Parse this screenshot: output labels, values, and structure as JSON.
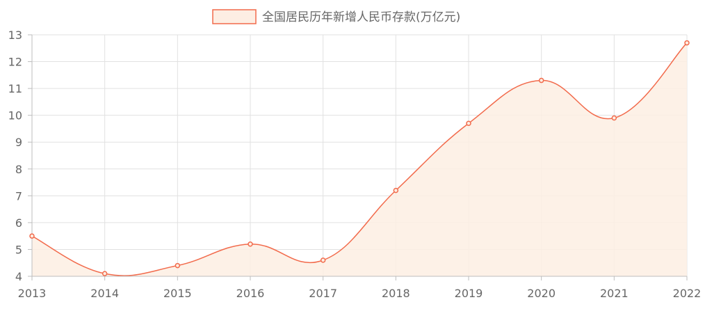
{
  "chart_data": {
    "type": "area",
    "title": "",
    "xlabel": "",
    "ylabel": "",
    "x": [
      "2013",
      "2014",
      "2015",
      "2016",
      "2017",
      "2018",
      "2019",
      "2020",
      "2021",
      "2022"
    ],
    "series": [
      {
        "name": "全国居民历年新增人民币存款(万亿元)",
        "values": [
          5.5,
          4.1,
          4.4,
          5.2,
          4.6,
          7.2,
          9.7,
          11.3,
          9.9,
          12.7
        ]
      }
    ],
    "ylim": [
      4,
      13
    ],
    "yticks": [
      "4",
      "5",
      "6",
      "7",
      "8",
      "9",
      "10",
      "11",
      "12",
      "13"
    ],
    "grid": true,
    "legend": "top-center",
    "colors": {
      "line": "#f26a4b",
      "fill": "#fdeee3",
      "grid": "#e1e1e1",
      "axis": "#bdbdbd",
      "text": "#666666"
    }
  }
}
